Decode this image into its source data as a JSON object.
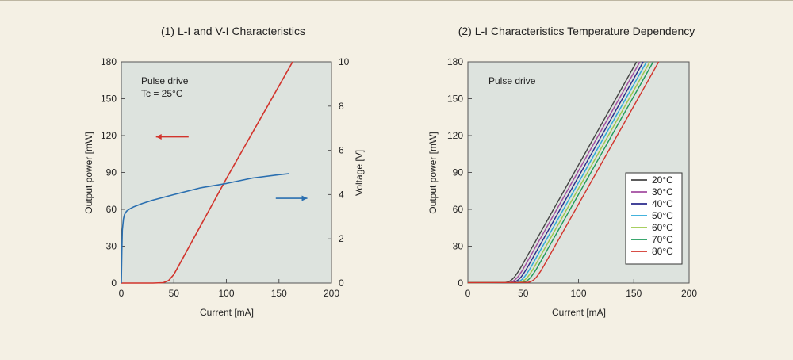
{
  "chart_data": [
    {
      "type": "line",
      "title": "(1) L-I and V-I Characteristics",
      "xlabel": "Current [mA]",
      "ylabel": "Output power [mW]",
      "y2label": "Voltage [V]",
      "xlim": [
        0,
        200
      ],
      "ylim": [
        0,
        180
      ],
      "y2lim": [
        0,
        10
      ],
      "xticks": [
        "0",
        "50",
        "100",
        "150",
        "200"
      ],
      "yticks": [
        "0",
        "30",
        "60",
        "90",
        "120",
        "150",
        "180"
      ],
      "y2ticks": [
        "0",
        "2",
        "4",
        "6",
        "8",
        "10"
      ],
      "annotations": [
        "Pulse drive",
        "Tc = 25°C"
      ],
      "grid": false,
      "series": [
        {
          "axis": "left",
          "color": "#d2342c",
          "x": [
            0,
            30,
            40,
            45,
            50,
            100,
            163
          ],
          "y": [
            0,
            0,
            0.3,
            2,
            7,
            85,
            181
          ]
        },
        {
          "axis": "right",
          "color": "#2a6fb0",
          "x": [
            0,
            0.5,
            1,
            2,
            3,
            5,
            8,
            12,
            20,
            30,
            50,
            75,
            100,
            125,
            150,
            160
          ],
          "y": [
            0,
            1.5,
            2.4,
            2.9,
            3.1,
            3.25,
            3.35,
            3.45,
            3.6,
            3.75,
            4.0,
            4.3,
            4.5,
            4.75,
            4.9,
            4.95
          ]
        }
      ],
      "arrows": [
        {
          "direction": "left",
          "color": "#d2342c",
          "x": [
            64,
            33
          ],
          "y": 119
        },
        {
          "direction": "right",
          "color": "#2a6fb0",
          "x": [
            147,
            177
          ],
          "y": 69
        }
      ]
    },
    {
      "type": "line",
      "title": "(2) L-I Characteristics Temperature Dependency",
      "xlabel": "Current [mA]",
      "ylabel": "Output power [mW]",
      "xlim": [
        0,
        200
      ],
      "ylim": [
        0,
        180
      ],
      "xticks": [
        "0",
        "50",
        "100",
        "150",
        "200"
      ],
      "yticks": [
        "0",
        "30",
        "60",
        "90",
        "120",
        "150",
        "180"
      ],
      "annotations": [
        "Pulse drive"
      ],
      "grid": false,
      "legend_position": "right",
      "series": [
        {
          "name": "20°C",
          "color": "#444444",
          "threshold": 40,
          "slope": 1.6
        },
        {
          "name": "30°C",
          "color": "#a24ca0",
          "threshold": 43,
          "slope": 1.6
        },
        {
          "name": "40°C",
          "color": "#2a2a8c",
          "threshold": 46,
          "slope": 1.6
        },
        {
          "name": "50°C",
          "color": "#2aa8d8",
          "threshold": 49,
          "slope": 1.6
        },
        {
          "name": "60°C",
          "color": "#9cc84a",
          "threshold": 52,
          "slope": 1.6
        },
        {
          "name": "70°C",
          "color": "#1e9a5a",
          "threshold": 55,
          "slope": 1.6
        },
        {
          "name": "80°C",
          "color": "#d2342c",
          "threshold": 60,
          "slope": 1.6
        }
      ]
    }
  ]
}
